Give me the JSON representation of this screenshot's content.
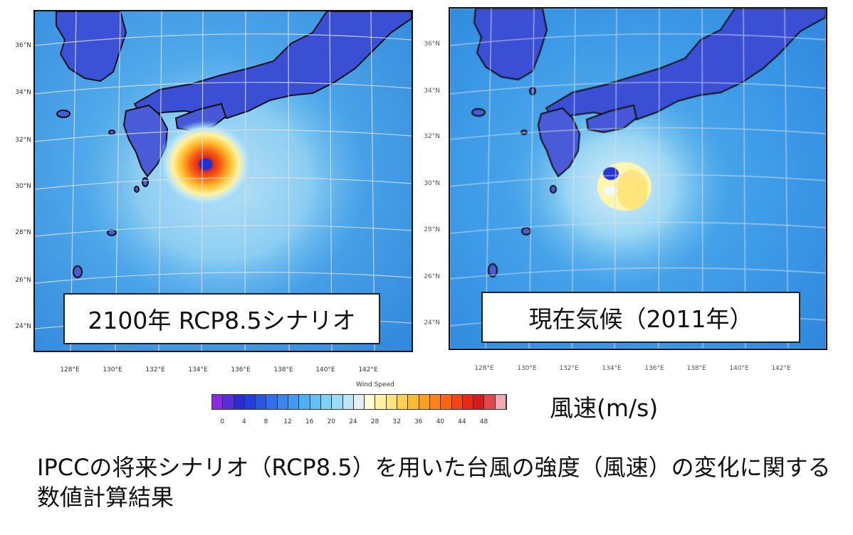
{
  "maps": [
    {
      "panel_label": "2100年 RCP8.5シナリオ",
      "lat_labels": [
        "36°N",
        "34°N",
        "32°N",
        "30°N",
        "28°N",
        "26°N",
        "24°N"
      ],
      "lon_labels": [
        "128°E",
        "130°E",
        "132°E",
        "134°E",
        "136°E",
        "138°E",
        "140°E",
        "142°E"
      ],
      "storm_center": {
        "lon": 134.1,
        "lat": 31.1
      },
      "peak_wind_ms": 46
    },
    {
      "panel_label": "現在気候（2011年）",
      "lat_labels": [
        "36°N",
        "34°N",
        "32°N",
        "30°N",
        "28°N",
        "26°N",
        "24°N"
      ],
      "lon_labels": [
        "128°E",
        "130°E",
        "132°E",
        "134°E",
        "136°E",
        "138°E",
        "140°E",
        "142°E"
      ],
      "storm_center": {
        "lon": 134.0,
        "lat": 30.4
      },
      "peak_wind_ms": 26
    }
  ],
  "legend": {
    "title": "Wind Speed",
    "ticks": [
      "0",
      "4",
      "8",
      "12",
      "16",
      "20",
      "24",
      "28",
      "32",
      "36",
      "40",
      "44",
      "48"
    ],
    "colors": [
      "#8a2be2",
      "#5a2ddc",
      "#2b2bd6",
      "#2240e0",
      "#2a55e8",
      "#3070ee",
      "#3a86f0",
      "#429bf2",
      "#4cb0f4",
      "#62c2f6",
      "#7dd0f6",
      "#9adcf6",
      "#bce6f6",
      "#dff1f4",
      "#fffcd0",
      "#fff2a0",
      "#ffe57a",
      "#ffd24f",
      "#ffbc2a",
      "#ffa01a",
      "#ff8416",
      "#ff6414",
      "#f84412",
      "#e82a14",
      "#d41a1a",
      "#e04848",
      "#f3a9b0"
    ],
    "unit": "風速(m/s)"
  },
  "caption": "IPCCの将来シナリオ（RCP8.5）を用いた台風の強度（風速）の変化に関する数値計算結果"
}
